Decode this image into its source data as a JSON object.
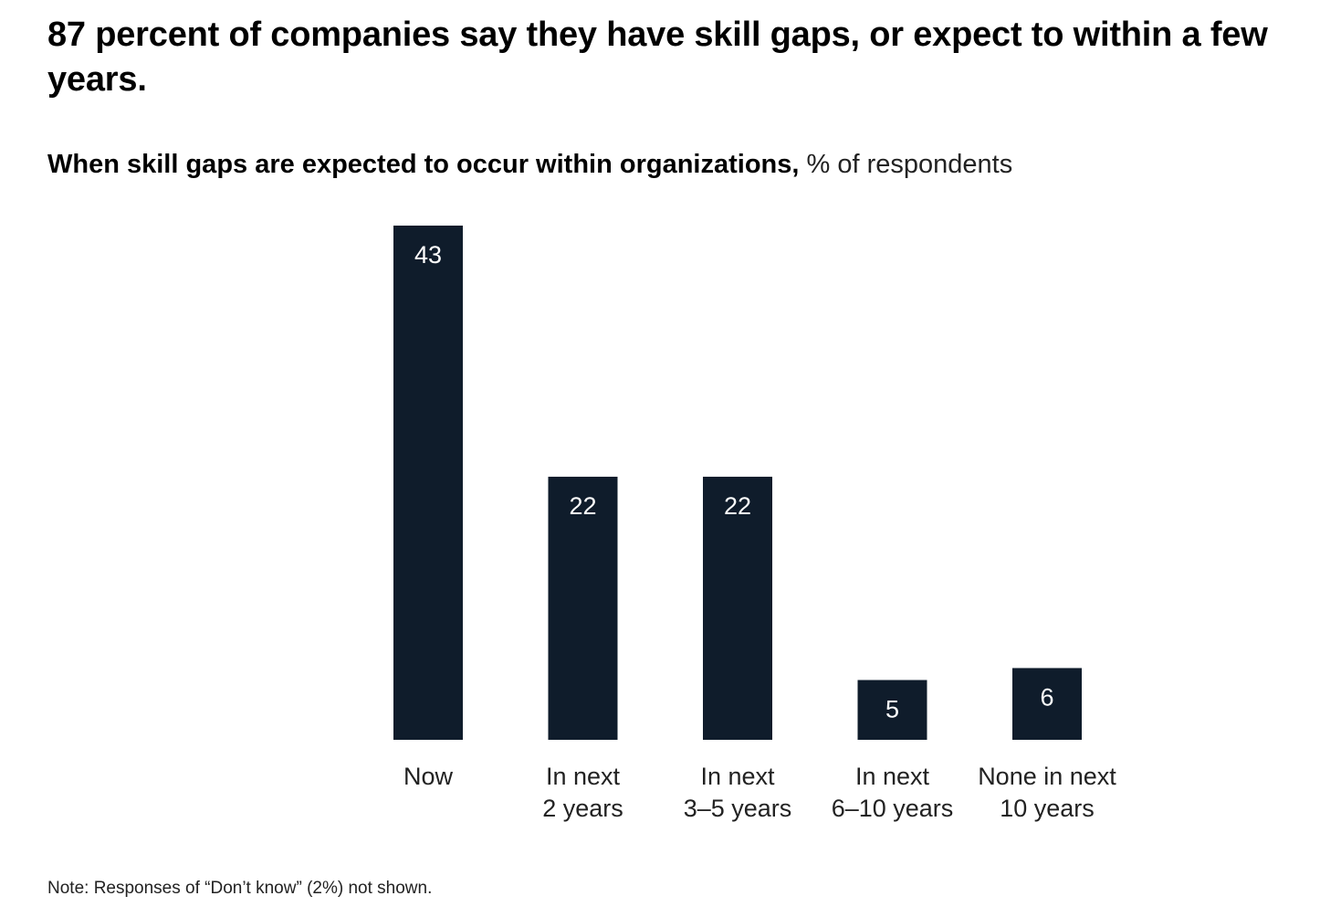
{
  "headline": "87 percent of companies say they have skill gaps, or expect to within a few years.",
  "subtitle": {
    "bold": "When skill gaps are expected to occur within organizations,",
    "normal": " % of respondents"
  },
  "note": "Note: Responses of “Don’t know” (2%) not shown.",
  "colors": {
    "bar": "#0f1c2b",
    "bar_label": "#ffffff",
    "category_label": "#222222"
  },
  "chart_data": {
    "type": "bar",
    "categories": [
      [
        "Now"
      ],
      [
        "In next",
        "2 years"
      ],
      [
        "In next",
        "3–5 years"
      ],
      [
        "In next",
        "6–10 years"
      ],
      [
        "None in next",
        "10 years"
      ]
    ],
    "values": [
      43,
      22,
      22,
      5,
      6
    ],
    "data_labels": [
      "43",
      "22",
      "22",
      "5",
      "6"
    ],
    "ylim": [
      0,
      43
    ],
    "grid": false,
    "legend": "none"
  }
}
